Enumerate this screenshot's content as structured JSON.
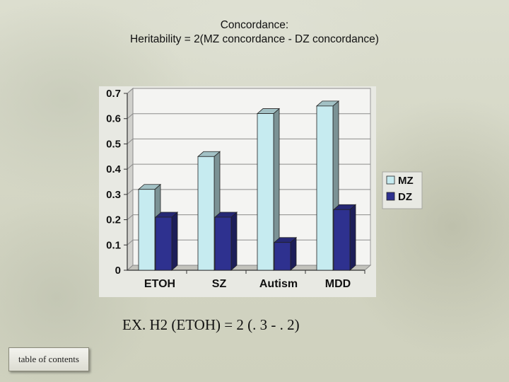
{
  "title_line1": "Concordance:",
  "title_line2": "Heritability = 2(MZ concordance - DZ concordance)",
  "formula": "EX. H2 (ETOH) = 2 (. 3 - . 2)",
  "toc_label": "table of contents",
  "chart_data": {
    "type": "bar",
    "categories": [
      "ETOH",
      "SZ",
      "Autism",
      "MDD"
    ],
    "series": [
      {
        "name": "MZ",
        "values": [
          0.32,
          0.45,
          0.62,
          0.65
        ],
        "color": "#c6ebf0"
      },
      {
        "name": "DZ",
        "values": [
          0.21,
          0.21,
          0.11,
          0.24
        ],
        "color": "#2e318f"
      }
    ],
    "ylim": [
      0,
      0.7
    ],
    "yticks": [
      "0",
      "0.1",
      "0.2",
      "0.3",
      "0.4",
      "0.5",
      "0.6",
      "0.7"
    ],
    "grid": true,
    "legend": "right",
    "style": "3d"
  }
}
